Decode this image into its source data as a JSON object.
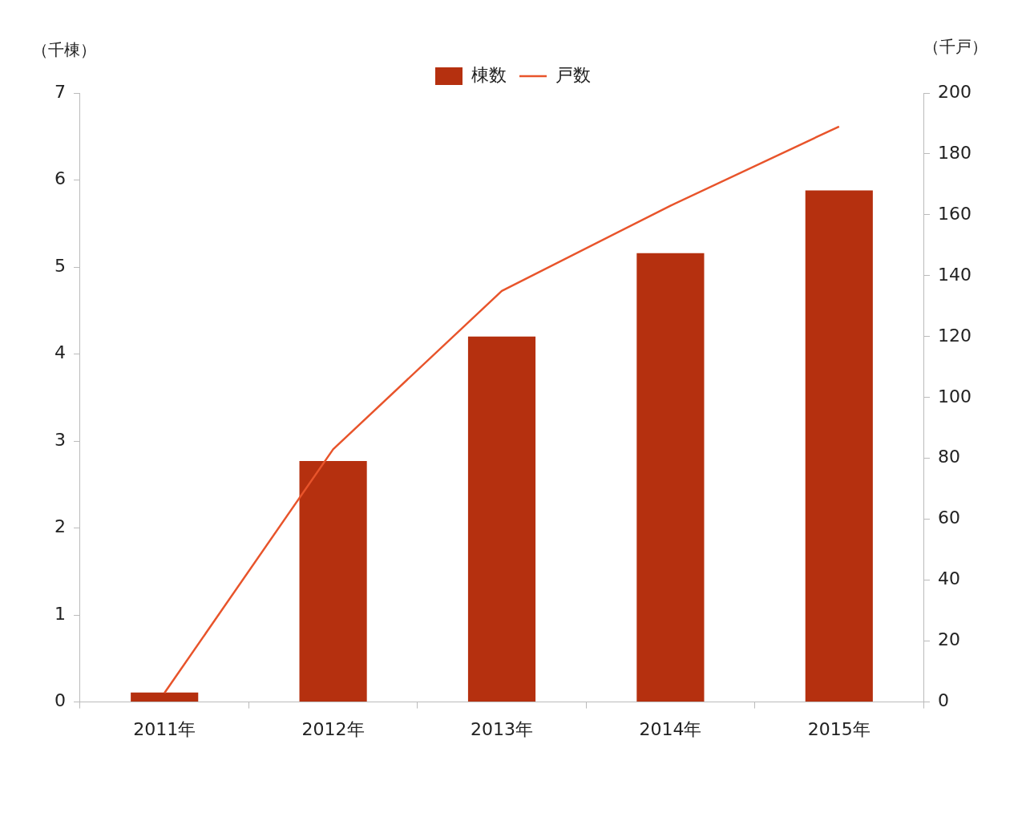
{
  "chart_data": {
    "type": "bar",
    "ylabel": "（千棟）",
    "y2label": "（千戸）",
    "categories": [
      "2011年",
      "2012年",
      "2013年",
      "2014年",
      "2015年"
    ],
    "series": [
      {
        "name": "棟数",
        "color": "#b5300f",
        "values": [
          0.11,
          2.77,
          4.2,
          5.16,
          5.88
        ]
      },
      {
        "name": "戸数",
        "type": "line",
        "axis": "y2",
        "color": "#e8542b",
        "values": [
          3,
          83,
          135,
          163,
          189
        ]
      }
    ],
    "ylim": [
      0,
      7
    ],
    "yticks": [
      0,
      1,
      2,
      3,
      4,
      5,
      6,
      7
    ],
    "y2lim": [
      0,
      200
    ],
    "y2ticks": [
      0,
      20,
      40,
      60,
      80,
      100,
      120,
      140,
      160,
      180,
      200
    ],
    "grid": false,
    "legend": "top",
    "marker": "none",
    "line_style": "solid"
  }
}
